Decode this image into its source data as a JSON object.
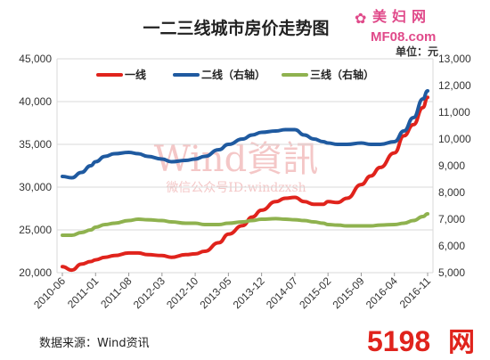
{
  "chart_data": {
    "type": "line",
    "title": "一二三线城市房价走势图",
    "unit_label": "单位：元",
    "source": "数据来源：Wind资讯",
    "legend_position": "top",
    "grid": true,
    "x_labels": [
      "2010-06",
      "2011-01",
      "2011-08",
      "2012-03",
      "2012-10",
      "2013-05",
      "2013-12",
      "2014-07",
      "2015-02",
      "2015-09",
      "2016-04",
      "2016-11"
    ],
    "y_left": {
      "min": 20000,
      "max": 45000,
      "ticks": [
        "20,000",
        "25,000",
        "30,000",
        "35,000",
        "40,000",
        "45,000"
      ]
    },
    "y_right": {
      "min": 5000,
      "max": 13000,
      "ticks": [
        "5,000",
        "6,000",
        "7,000",
        "8,000",
        "9,000",
        "10,000",
        "11,000",
        "12,000",
        "13,000"
      ]
    },
    "series": [
      {
        "name": "一线",
        "axis": "left",
        "color": "#e0231c",
        "x": [
          "2010-06",
          "2010-08",
          "2010-10",
          "2010-12",
          "2011-01",
          "2011-03",
          "2011-05",
          "2011-08",
          "2011-10",
          "2011-12",
          "2012-03",
          "2012-05",
          "2012-08",
          "2012-10",
          "2012-12",
          "2013-03",
          "2013-05",
          "2013-08",
          "2013-10",
          "2013-12",
          "2014-03",
          "2014-05",
          "2014-07",
          "2014-09",
          "2014-11",
          "2015-01",
          "2015-02",
          "2015-04",
          "2015-06",
          "2015-09",
          "2015-11",
          "2016-01",
          "2016-04",
          "2016-06",
          "2016-08",
          "2016-10",
          "2016-11"
        ],
        "y": [
          20700,
          20300,
          21000,
          21300,
          21500,
          21800,
          22000,
          22300,
          22300,
          22100,
          22000,
          21800,
          22100,
          22200,
          22500,
          23500,
          24500,
          25500,
          26500,
          27300,
          28300,
          28700,
          28800,
          28300,
          28000,
          28000,
          28300,
          28200,
          28700,
          30300,
          31300,
          32300,
          34000,
          36000,
          37300,
          39300,
          40500
        ]
      },
      {
        "name": "二线（右轴）",
        "axis": "right",
        "color": "#1f5aa0",
        "x": [
          "2010-06",
          "2010-08",
          "2010-10",
          "2010-12",
          "2011-01",
          "2011-03",
          "2011-05",
          "2011-08",
          "2011-10",
          "2011-12",
          "2012-03",
          "2012-05",
          "2012-08",
          "2012-10",
          "2012-12",
          "2013-03",
          "2013-05",
          "2013-08",
          "2013-10",
          "2013-12",
          "2014-03",
          "2014-05",
          "2014-07",
          "2014-09",
          "2014-11",
          "2015-01",
          "2015-02",
          "2015-04",
          "2015-06",
          "2015-09",
          "2015-11",
          "2016-01",
          "2016-04",
          "2016-06",
          "2016-08",
          "2016-10",
          "2016-11"
        ],
        "y": [
          8600,
          8550,
          8750,
          9000,
          9150,
          9350,
          9450,
          9500,
          9450,
          9350,
          9250,
          9150,
          9200,
          9250,
          9350,
          9600,
          9800,
          10000,
          10150,
          10250,
          10300,
          10350,
          10350,
          10150,
          10000,
          9900,
          9850,
          9800,
          9800,
          9850,
          9800,
          9800,
          9900,
          10300,
          10800,
          11500,
          11800
        ]
      },
      {
        "name": "三线（右轴）",
        "axis": "right",
        "color": "#8fb24f",
        "x": [
          "2010-06",
          "2010-08",
          "2010-10",
          "2010-12",
          "2011-01",
          "2011-03",
          "2011-05",
          "2011-08",
          "2011-10",
          "2011-12",
          "2012-03",
          "2012-05",
          "2012-08",
          "2012-10",
          "2012-12",
          "2013-03",
          "2013-05",
          "2013-08",
          "2013-10",
          "2013-12",
          "2014-03",
          "2014-05",
          "2014-07",
          "2014-09",
          "2014-11",
          "2015-01",
          "2015-02",
          "2015-04",
          "2015-06",
          "2015-09",
          "2015-11",
          "2016-01",
          "2016-04",
          "2016-06",
          "2016-08",
          "2016-10",
          "2016-11"
        ],
        "y": [
          6400,
          6400,
          6500,
          6600,
          6700,
          6800,
          6850,
          6950,
          7000,
          6980,
          6950,
          6900,
          6850,
          6850,
          6800,
          6800,
          6850,
          6900,
          6950,
          7000,
          7020,
          7000,
          6980,
          6950,
          6900,
          6850,
          6800,
          6780,
          6750,
          6750,
          6750,
          6780,
          6800,
          6850,
          6950,
          7100,
          7200
        ]
      }
    ]
  },
  "watermarks": {
    "top_right_cn": "美妇网",
    "top_right_url": "MF08.com",
    "center_main": "Wind資訊",
    "center_sub": "微信公众号ID:windzxsh",
    "bottom_right_num": "5198",
    "bottom_right_cn": "网"
  },
  "colors": {
    "grid": "#d9d9d9",
    "axis_text": "#333333",
    "watermark_red": "#e04a8a",
    "center_wm": "#f3c6c6"
  }
}
